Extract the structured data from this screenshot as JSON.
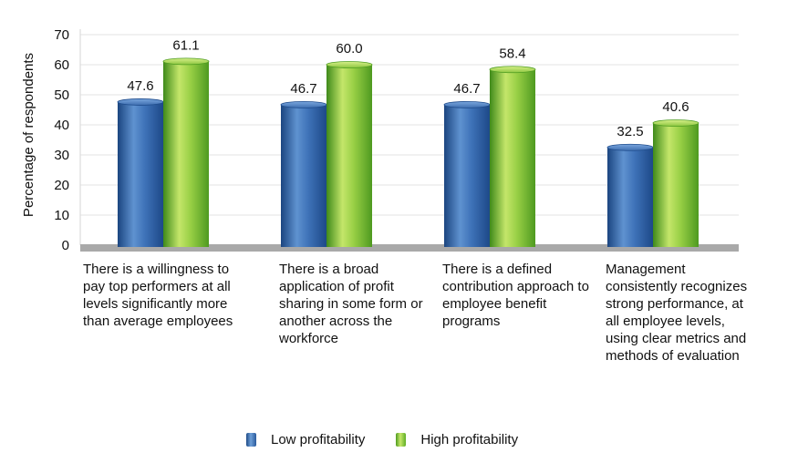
{
  "chart_data": {
    "type": "bar",
    "ylabel": "Percentage of respondents",
    "ylim": [
      0,
      70
    ],
    "yticks": [
      "0",
      "10",
      "20",
      "30",
      "40",
      "50",
      "60",
      "70"
    ],
    "grid": true,
    "legend_position": "bottom",
    "categories": [
      "There is a willingness to pay top performers at all levels significantly more than average employees",
      "There is a broad application of profit sharing in some form or another across the workforce",
      "There is a defined contribution approach to employee benefit programs",
      "Management consistently recognizes strong performance, at all employee levels, using clear metrics and methods of evaluation"
    ],
    "series": [
      {
        "name": "Low profitability",
        "values": [
          47.6,
          46.7,
          46.7,
          32.5
        ],
        "labels": [
          "47.6",
          "46.7",
          "46.7",
          "32.5"
        ],
        "color": "#2f5fa3"
      },
      {
        "name": "High profitability",
        "values": [
          61.1,
          60.0,
          58.4,
          40.6
        ],
        "labels": [
          "61.1",
          "60.0",
          "58.4",
          "40.6"
        ],
        "color": "#7cc23a"
      }
    ]
  }
}
